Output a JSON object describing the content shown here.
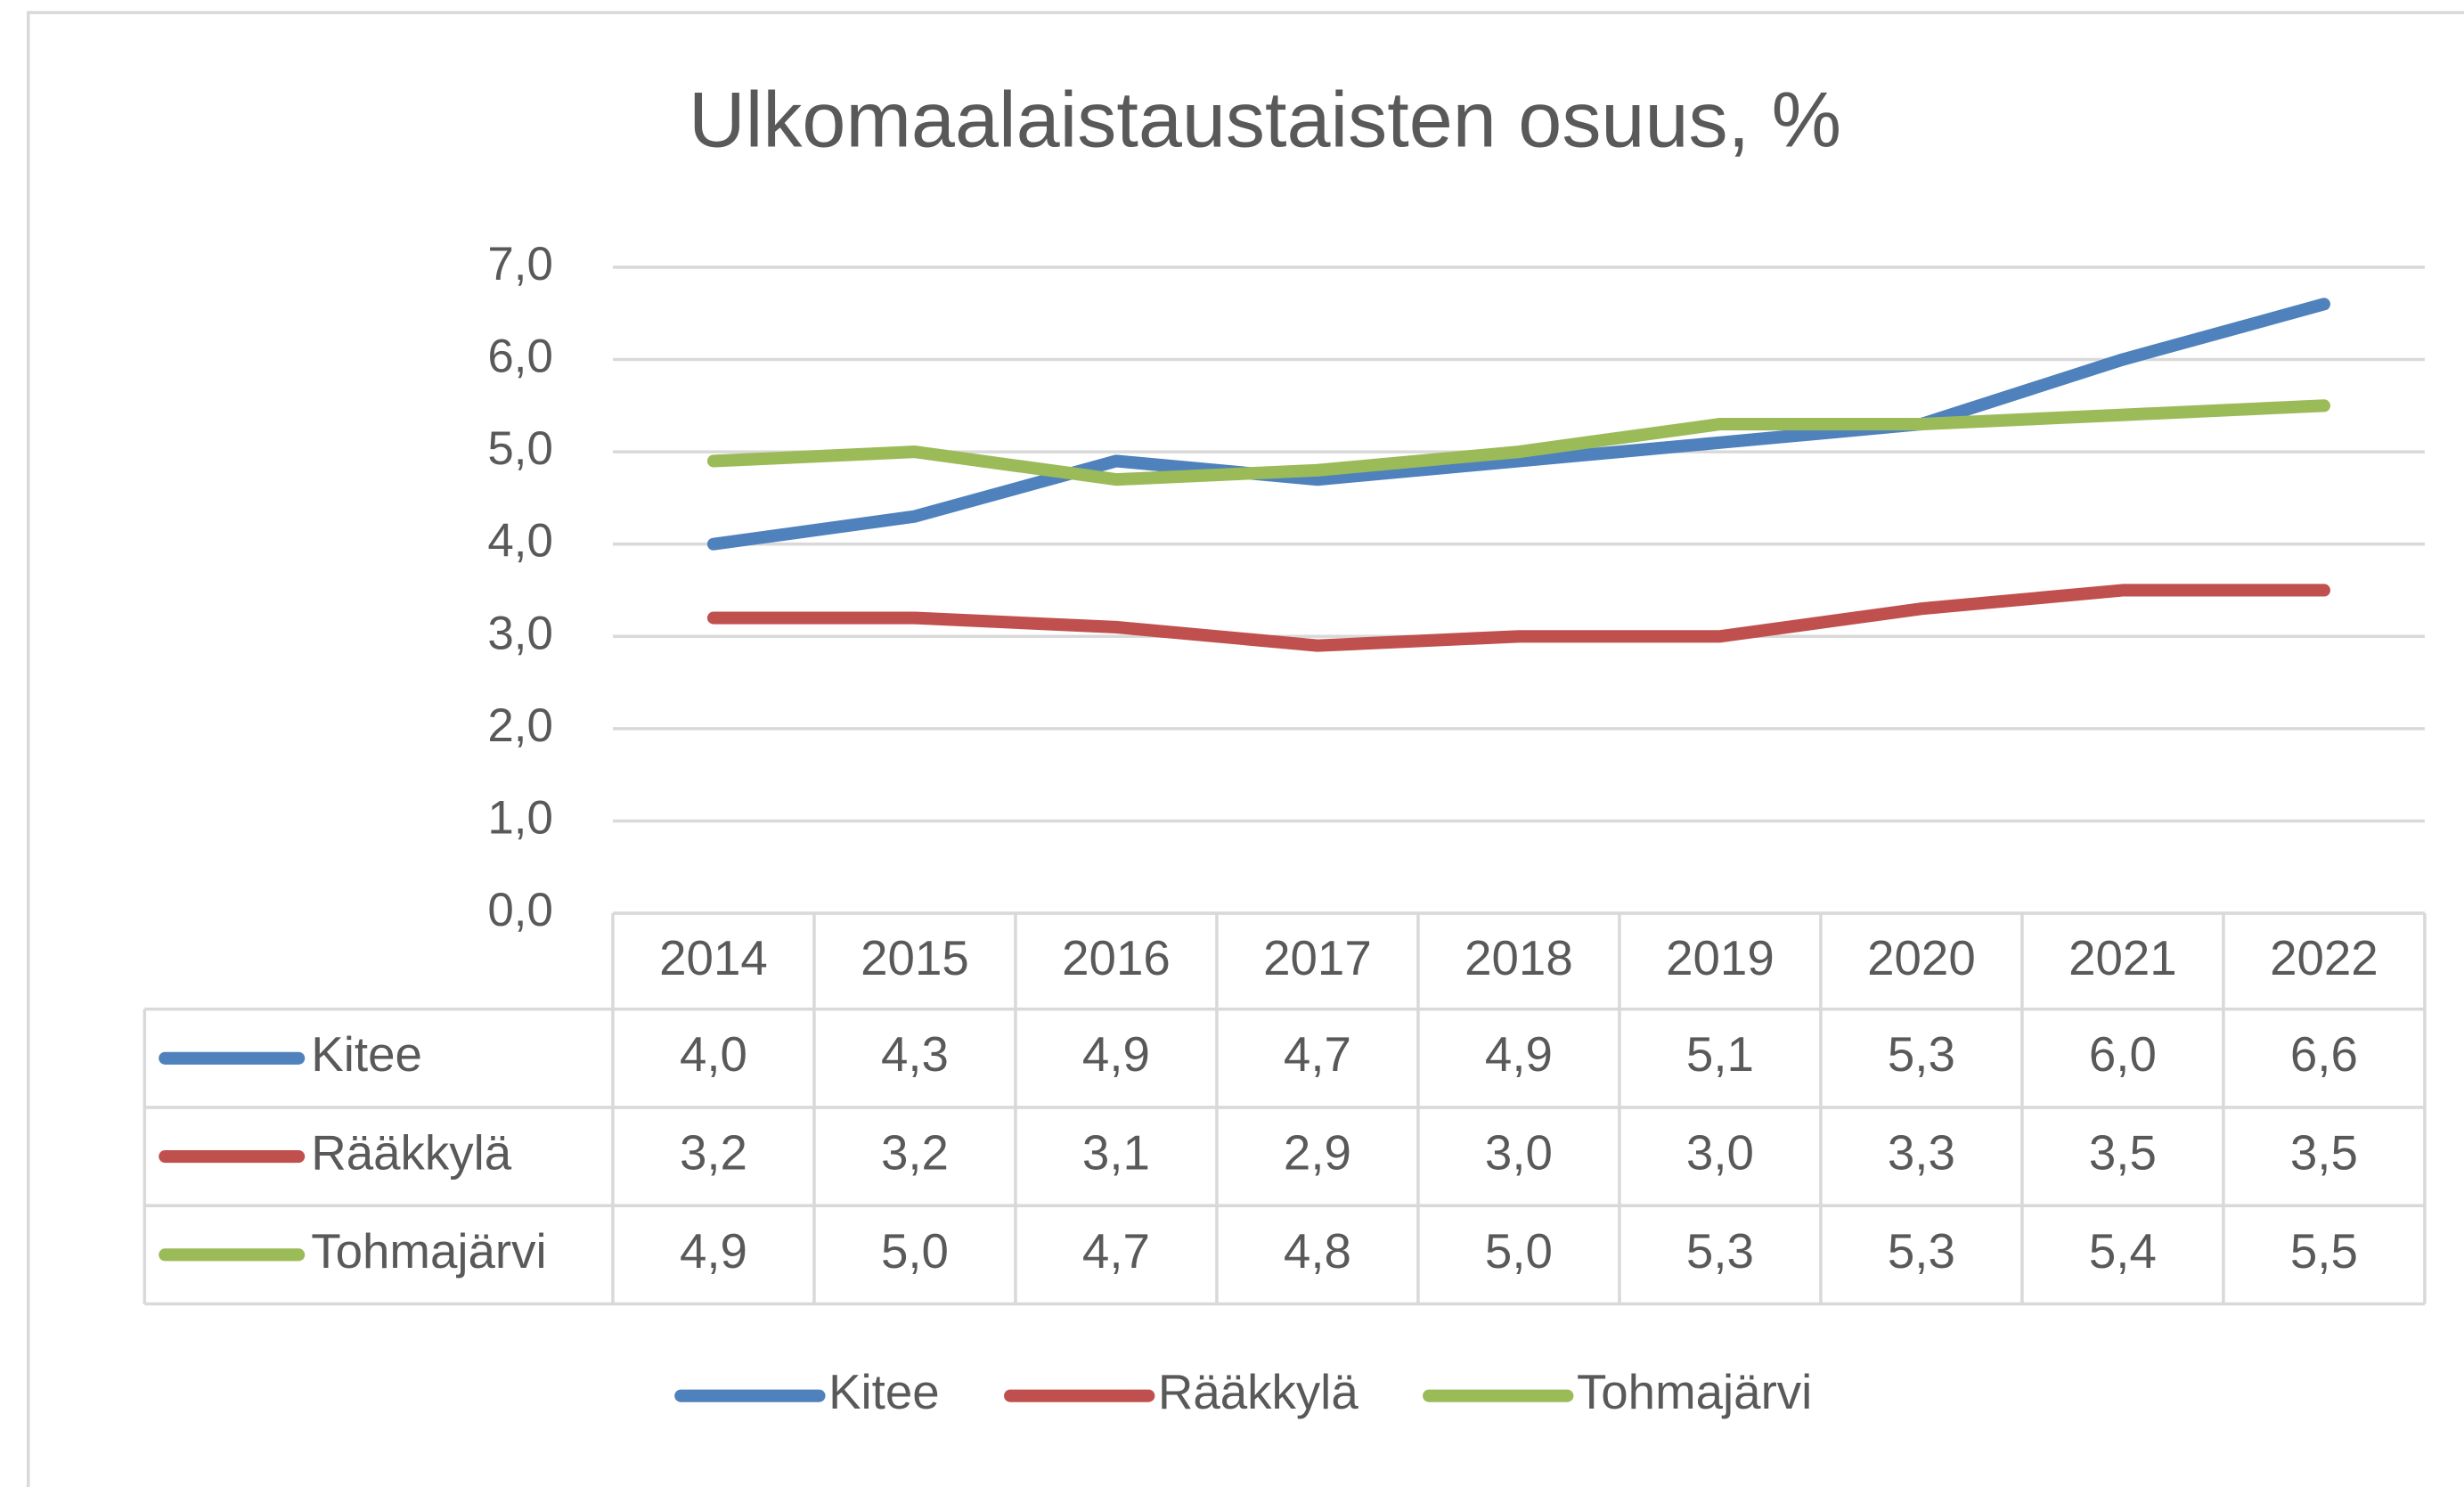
{
  "chart_data": {
    "type": "line",
    "title": "Ulkomaalaistaustaisten osuus, %",
    "categories": [
      "2014",
      "2015",
      "2016",
      "2017",
      "2018",
      "2019",
      "2020",
      "2021",
      "2022"
    ],
    "series": [
      {
        "name": "Kitee",
        "color": "#4f81bd",
        "values": [
          4.0,
          4.3,
          4.9,
          4.7,
          4.9,
          5.1,
          5.3,
          6.0,
          6.6
        ],
        "value_labels": [
          "4,0",
          "4,3",
          "4,9",
          "4,7",
          "4,9",
          "5,1",
          "5,3",
          "6,0",
          "6,6"
        ]
      },
      {
        "name": "Rääkkylä",
        "color": "#c0504d",
        "values": [
          3.2,
          3.2,
          3.1,
          2.9,
          3.0,
          3.0,
          3.3,
          3.5,
          3.5
        ],
        "value_labels": [
          "3,2",
          "3,2",
          "3,1",
          "2,9",
          "3,0",
          "3,0",
          "3,3",
          "3,5",
          "3,5"
        ]
      },
      {
        "name": "Tohmajärvi",
        "color": "#9bbb59",
        "values": [
          4.9,
          5.0,
          4.7,
          4.8,
          5.0,
          5.3,
          5.3,
          5.4,
          5.5
        ],
        "value_labels": [
          "4,9",
          "5,0",
          "4,7",
          "4,8",
          "5,0",
          "5,3",
          "5,3",
          "5,4",
          "5,5"
        ]
      }
    ],
    "ylim": [
      0,
      7
    ],
    "yticks": [
      {
        "value": 0,
        "label": "0,0"
      },
      {
        "value": 1,
        "label": "1,0"
      },
      {
        "value": 2,
        "label": "2,0"
      },
      {
        "value": 3,
        "label": "3,0"
      },
      {
        "value": 4,
        "label": "4,0"
      },
      {
        "value": 5,
        "label": "5,0"
      },
      {
        "value": 6,
        "label": "6,0"
      },
      {
        "value": 7,
        "label": "7,0"
      }
    ],
    "grid": true,
    "legend": "bottom"
  }
}
